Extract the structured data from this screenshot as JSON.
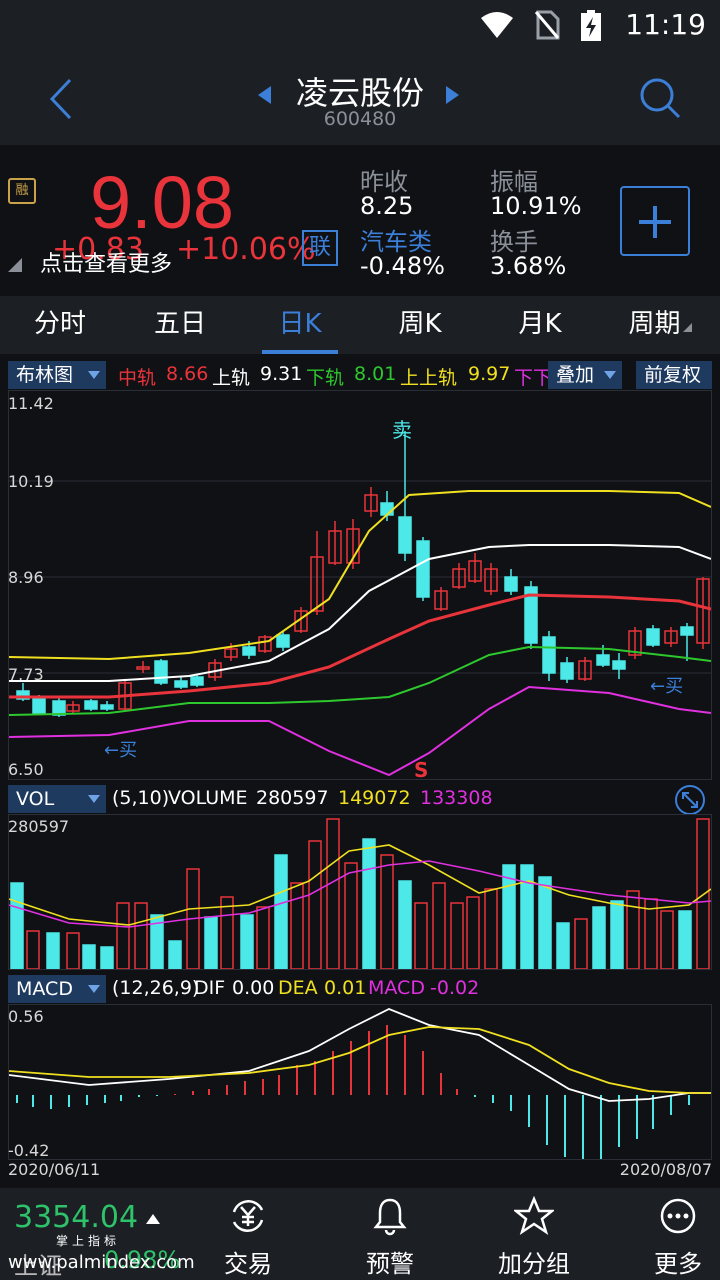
{
  "status_bar": {
    "time": "11:19"
  },
  "header": {
    "title": "凌云股份",
    "code": "600480"
  },
  "quote": {
    "badge": "融",
    "price": "9.08",
    "change": "+0.83",
    "change_pct": "+10.06%",
    "lian": "联",
    "hint": "点击查看更多",
    "stats": [
      {
        "label": "昨收",
        "value": "8.25"
      },
      {
        "label": "振幅",
        "value": "10.91%"
      },
      {
        "label": "汽车类",
        "value": "-0.48%"
      },
      {
        "label": "换手",
        "value": "3.68%"
      }
    ]
  },
  "tabs": [
    "分时",
    "五日",
    "日K",
    "周K",
    "月K",
    "周期"
  ],
  "active_tab": "日K",
  "boll": {
    "selector": "布林图",
    "mid_label": "中轨",
    "mid": "8.66",
    "upper_label": "上轨",
    "upper": "9.31",
    "lower_label": "下轨",
    "lower": "8.01",
    "uu_label": "上上轨",
    "uu": "9.97",
    "ll_label": "下下",
    "overlay": "叠加",
    "adjust": "前复权",
    "y_labels": [
      "11.42",
      "10.19",
      "8.96",
      "7.73",
      "6.50"
    ],
    "sell_marker": "卖",
    "buy_marker_1": "←买",
    "buy_marker_2": "←买",
    "s_marker": "S"
  },
  "vol": {
    "selector": "VOL",
    "params": "(5,10)",
    "label": "VOLUME",
    "volume": "280597",
    "ma5": "149072",
    "ma10": "133308",
    "y_top": "280597"
  },
  "macd": {
    "selector": "MACD",
    "params": "(12,26,9)",
    "dif_label": "DIF",
    "dif": "0.00",
    "dea_label": "DEA",
    "dea": "0.01",
    "macd_label": "MACD",
    "macd": "-0.02",
    "y_top": "0.56",
    "y_bottom": "-0.42",
    "date_start": "2020/06/11",
    "date_end": "2020/08/07"
  },
  "bottom_nav": {
    "index_value": "3354.04",
    "index_name": "上证",
    "index_pct": "0.98%",
    "brand": "掌上指标",
    "watermark": "www.palmindex.com",
    "items": [
      {
        "label": "交易",
        "icon": "yuan-cycle-icon"
      },
      {
        "label": "预警",
        "icon": "bell-icon"
      },
      {
        "label": "加分组",
        "icon": "star-icon"
      },
      {
        "label": "更多",
        "icon": "more-icon"
      }
    ]
  },
  "colors": {
    "up": "#e8343a",
    "down": "#4de8e8",
    "accent": "#3b7fd8",
    "mid_line": "#e8343a",
    "upper_line": "#ffffff",
    "lower_line": "#2ec82e",
    "uu_line": "#f0e020",
    "ll_line": "#e030e0"
  }
}
